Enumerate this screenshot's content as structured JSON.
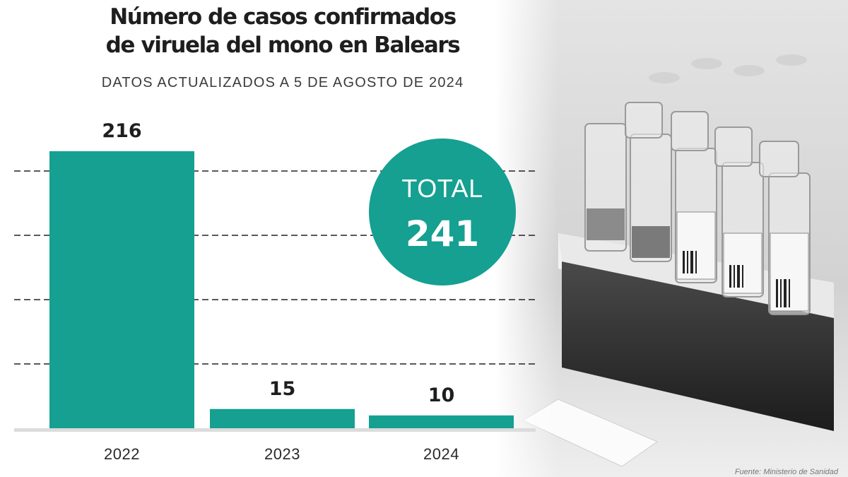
{
  "chart_data": {
    "type": "bar",
    "title_lines": [
      "Número de casos confirmados",
      "de viruela del mono en Balears"
    ],
    "subtitle": "DATOS ACTUALIZADOS A 5 DE AGOSTO DE 2024",
    "categories": [
      "2022",
      "2023",
      "2024"
    ],
    "values": [
      216,
      15,
      10
    ],
    "value_labels": [
      "216",
      "15",
      "10"
    ],
    "ylim": [
      0,
      216
    ],
    "grid": "dashed",
    "total_label": "TOTAL",
    "total_value": "241",
    "bar_color": "#15a091",
    "source": "Fuente: Ministerio de Sanidad"
  }
}
